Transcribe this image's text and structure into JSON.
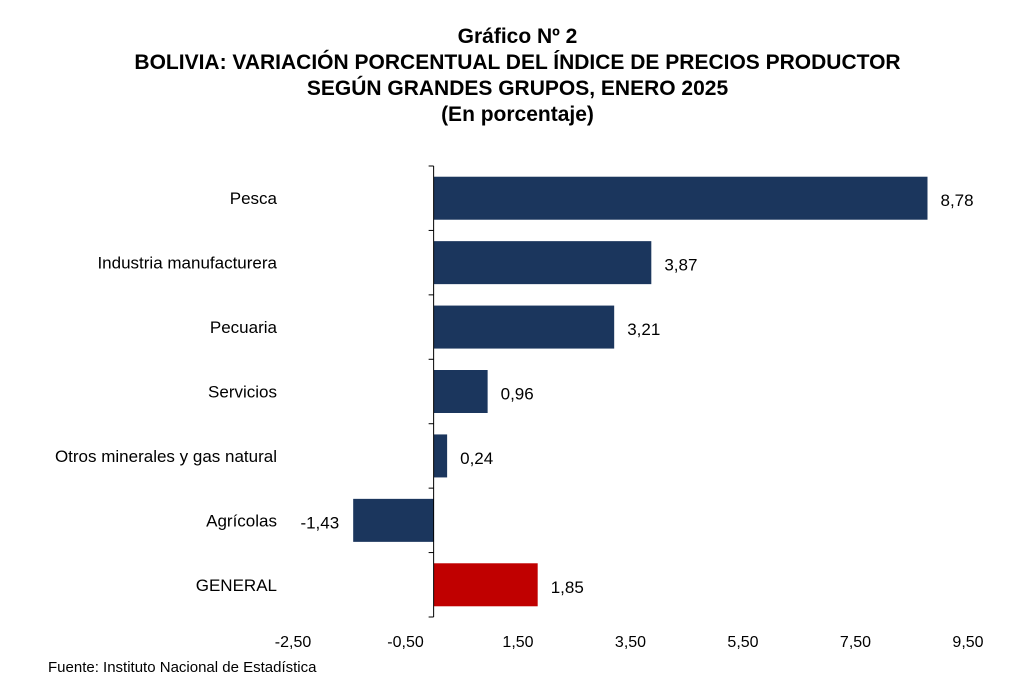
{
  "title_lines": [
    "Gráfico Nº 2",
    "BOLIVIA: VARIACIÓN PORCENTUAL DEL ÍNDICE DE PRECIOS PRODUCTOR",
    "SEGÚN GRANDES GRUPOS, ENERO 2025",
    "(En porcentaje)"
  ],
  "source": "Fuente: Instituto Nacional de Estadística",
  "chart_data": {
    "type": "bar",
    "orientation": "horizontal",
    "categories": [
      "Pesca",
      "Industria manufacturera",
      "Pecuaria",
      "Servicios",
      "Otros minerales y gas natural",
      "Agrícolas",
      "GENERAL"
    ],
    "values": [
      8.78,
      3.87,
      3.21,
      0.96,
      0.24,
      -1.43,
      1.85
    ],
    "value_labels": [
      "8,78",
      "3,87",
      "3,21",
      "0,96",
      "0,24",
      "-1,43",
      "1,85"
    ],
    "xlim": [
      -2.5,
      9.5
    ],
    "xticks": [
      -2.5,
      -0.5,
      1.5,
      3.5,
      5.5,
      7.5,
      9.5
    ],
    "xtick_labels": [
      "-2,50",
      "-0,50",
      "1,50",
      "3,50",
      "5,50",
      "7,50",
      "9,50"
    ],
    "colors": [
      "#1b365d",
      "#1b365d",
      "#1b365d",
      "#1b365d",
      "#1b365d",
      "#1b365d",
      "#c00000"
    ],
    "grid": false,
    "legend": "none"
  }
}
